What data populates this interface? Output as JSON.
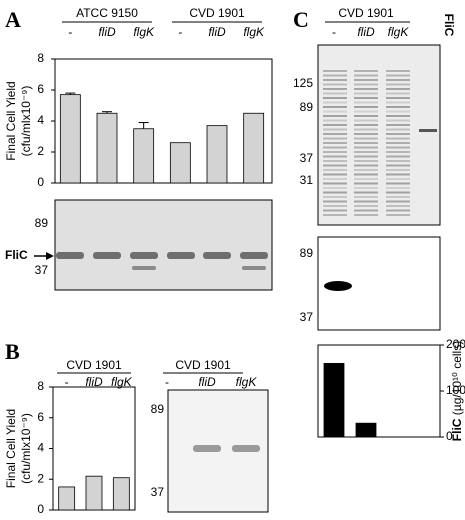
{
  "panels": [
    "A",
    "B",
    "C"
  ],
  "chart_data": [
    {
      "type": "bar",
      "groups": [
        "ATCC 9150",
        "CVD 1901"
      ],
      "categories": [
        "-",
        "fliD",
        "flgK",
        "-",
        "fliD",
        "flgK"
      ],
      "values": [
        5.7,
        4.5,
        3.5,
        2.6,
        3.7,
        4.5
      ],
      "errors": [
        0.1,
        0.1,
        0.4,
        null,
        null,
        null
      ],
      "y_label": [
        "Final Cell Yield",
        "(cfu/mlx10⁻⁹)"
      ],
      "ylim": [
        0,
        8
      ],
      "yticks": [
        0,
        2,
        4,
        6,
        8
      ],
      "color": "#d3d3d3"
    },
    {
      "type": "bar",
      "groups": [
        "CVD 1901"
      ],
      "categories": [
        "-",
        "fliD",
        "flgK"
      ],
      "values": [
        1.5,
        2.2,
        2.1
      ],
      "y_label": [
        "Final Cell Yield",
        "(cfu/mlx10⁻⁹)"
      ],
      "ylim": [
        0,
        8
      ],
      "yticks": [
        0,
        2,
        4,
        6,
        8
      ],
      "color": "#d3d3d3"
    },
    {
      "type": "bar",
      "categories": [
        null,
        null,
        null
      ],
      "values": [
        160,
        30,
        0
      ],
      "y2_label": [
        "FliC",
        "(µg/10¹⁰ cells)"
      ],
      "axis": "y2",
      "y2lim": [
        0,
        200
      ],
      "y2ticks": [
        0,
        100,
        200
      ],
      "color": "#000000"
    }
  ],
  "gels": [
    {
      "markers": [
        "89",
        "37"
      ],
      "band_label": "FliC"
    },
    {
      "header": "CVD 1901",
      "lanes": [
        "-",
        "fliD",
        "flgK"
      ],
      "markers": [
        "89",
        "37"
      ]
    },
    {
      "header": "CVD 1901",
      "lanes": [
        "-",
        "fliD",
        "flgK",
        "FliC"
      ],
      "markers": [
        "125",
        "89",
        "37",
        "31"
      ]
    },
    {
      "markers": [
        "89",
        "37"
      ]
    }
  ]
}
